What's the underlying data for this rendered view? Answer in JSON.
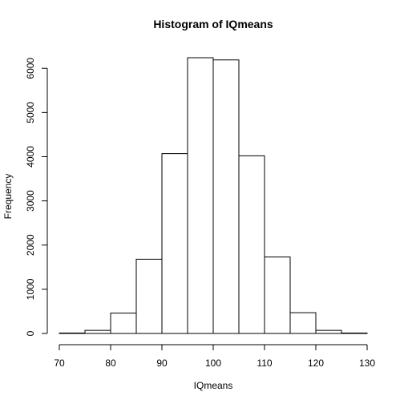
{
  "chart_data": {
    "type": "bar",
    "title": "Histogram of IQmeans",
    "xlabel": "IQmeans",
    "ylabel": "Frequency",
    "bin_edges": [
      70,
      75,
      80,
      85,
      90,
      95,
      100,
      105,
      110,
      115,
      120,
      125,
      130
    ],
    "values": [
      10,
      70,
      460,
      1680,
      4070,
      6240,
      6190,
      4020,
      1730,
      470,
      70,
      10
    ],
    "xlim": [
      70,
      130
    ],
    "ylim": [
      0,
      6240
    ],
    "x_ticks": [
      70,
      80,
      90,
      100,
      110,
      120,
      130
    ],
    "y_ticks": [
      0,
      1000,
      2000,
      3000,
      4000,
      5000,
      6000
    ],
    "grid": false,
    "colors": {
      "bar_fill": "#ffffff",
      "bar_stroke": "#000000",
      "axis": "#000000"
    }
  }
}
